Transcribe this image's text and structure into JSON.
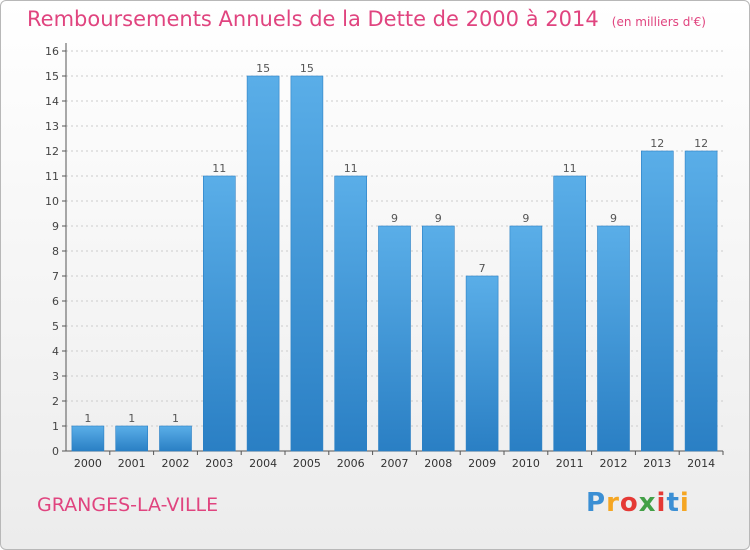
{
  "title": {
    "main": "Remboursements Annuels de la Dette de 2000 à 2014",
    "unit": "(en milliers d'€)"
  },
  "footer": {
    "commune": "GRANGES-LA-VILLE",
    "logo_letters": [
      "P",
      "r",
      "o",
      "x",
      "i",
      "t",
      "i"
    ],
    "logo_colors": [
      "#3b8fd4",
      "#f5a623",
      "#e53935",
      "#43a047",
      "#e53935",
      "#3b8fd4",
      "#f5a623"
    ]
  },
  "colors": {
    "title": "#e0447f",
    "bar_top": "#5aaee8",
    "bar_bottom": "#2a7fc4",
    "axis": "#555555",
    "grid": "#cccccc"
  },
  "chart_data": {
    "type": "bar",
    "categories": [
      "2000",
      "2001",
      "2002",
      "2003",
      "2004",
      "2005",
      "2006",
      "2007",
      "2008",
      "2009",
      "2010",
      "2011",
      "2012",
      "2013",
      "2014"
    ],
    "values": [
      1,
      1,
      1,
      11,
      15,
      15,
      11,
      9,
      9,
      7,
      9,
      11,
      9,
      12,
      12
    ],
    "data_labels": [
      "1",
      "1",
      "1",
      "11",
      "15",
      "15",
      "11",
      "9",
      "9",
      "7",
      "9",
      "11",
      "9",
      "12",
      "12"
    ],
    "ylim": [
      0,
      16
    ],
    "yticks": [
      0,
      1,
      2,
      3,
      4,
      5,
      6,
      7,
      8,
      9,
      10,
      11,
      12,
      13,
      14,
      15,
      16
    ],
    "grid": true,
    "xlabel": "",
    "ylabel": ""
  }
}
